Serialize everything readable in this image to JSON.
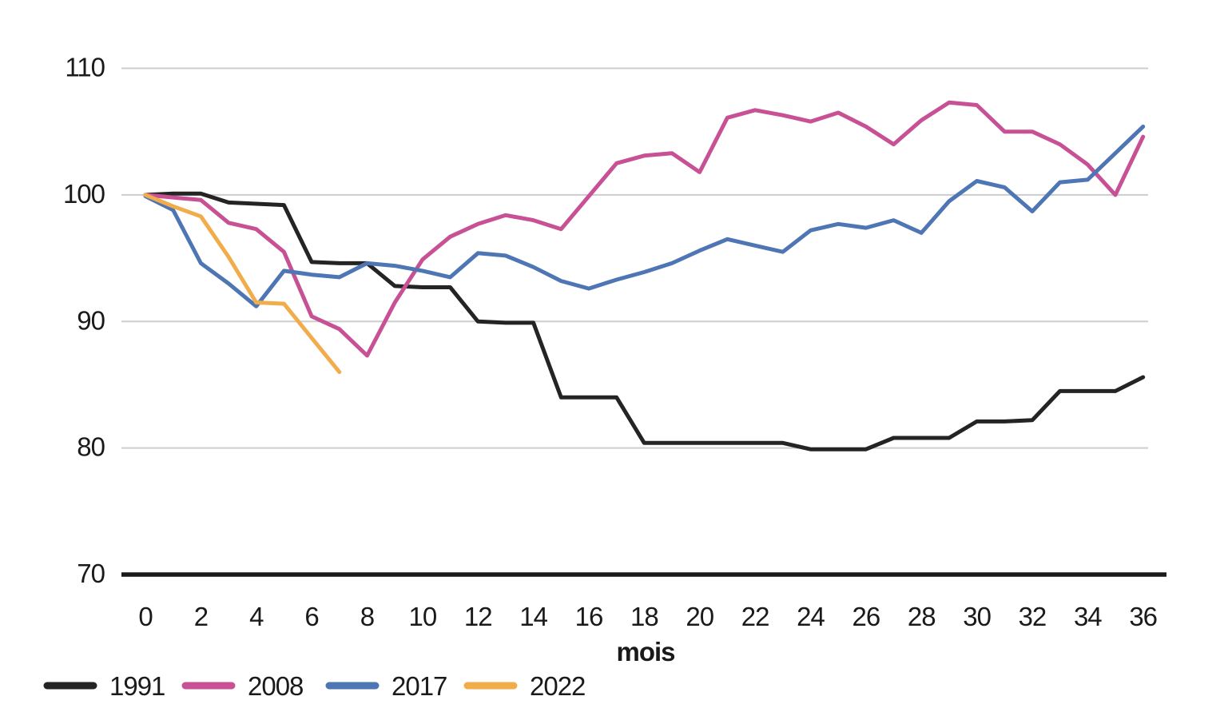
{
  "chart_data": {
    "type": "line",
    "title": "",
    "xlabel": "mois",
    "ylabel": "",
    "x_ticks": [
      0,
      2,
      4,
      6,
      8,
      10,
      12,
      14,
      16,
      18,
      20,
      22,
      24,
      26,
      28,
      30,
      32,
      34,
      36
    ],
    "y_ticks": [
      70,
      80,
      90,
      100,
      110
    ],
    "xlim": [
      0,
      36
    ],
    "ylim": [
      70,
      112
    ],
    "grid": "horizontal-only",
    "legend_position": "bottom-left",
    "colors": {
      "axis": "#1a1a1a",
      "gridline": "#cdcdcd",
      "background": "#ffffff"
    },
    "series": [
      {
        "name": "1991",
        "color": "#242424",
        "x_start": 0,
        "values": [
          100,
          100.1,
          100.1,
          99.4,
          99.3,
          99.2,
          94.7,
          94.6,
          94.6,
          92.8,
          92.7,
          92.7,
          90.0,
          89.9,
          89.9,
          84.0,
          84.0,
          84.0,
          80.4,
          80.4,
          80.4,
          80.4,
          80.4,
          80.4,
          79.9,
          79.9,
          79.9,
          80.8,
          80.8,
          80.8,
          82.1,
          82.1,
          82.2,
          84.5,
          84.5,
          84.5,
          85.6
        ]
      },
      {
        "name": "2008",
        "color": "#c75194",
        "x_start": 0,
        "values": [
          100,
          99.8,
          99.6,
          97.8,
          97.3,
          95.5,
          90.4,
          89.4,
          87.3,
          91.5,
          94.9,
          96.7,
          97.7,
          98.4,
          98.0,
          97.3,
          99.9,
          102.5,
          103.1,
          103.3,
          101.8,
          106.1,
          106.7,
          106.3,
          105.8,
          106.5,
          105.4,
          104.0,
          105.9,
          107.3,
          107.1,
          105.0,
          105.0,
          104.0,
          102.4,
          100.0,
          104.6
        ]
      },
      {
        "name": "2017",
        "color": "#4f76b4",
        "x_start": 0,
        "values": [
          99.9,
          98.8,
          94.6,
          93.0,
          91.2,
          94.0,
          93.7,
          93.5,
          94.6,
          94.4,
          94.0,
          93.5,
          95.4,
          95.2,
          94.3,
          93.2,
          92.6,
          93.3,
          93.9,
          94.6,
          95.6,
          96.5,
          96.0,
          95.5,
          97.2,
          97.7,
          97.4,
          98.0,
          97.0,
          99.5,
          101.1,
          100.6,
          98.7,
          101.0,
          101.2,
          103.3,
          105.4
        ]
      },
      {
        "name": "2022",
        "color": "#f1ad4b",
        "x_start": 0,
        "values": [
          100,
          99.1,
          98.3,
          95.1,
          91.5,
          91.4,
          88.7,
          86.0
        ]
      }
    ]
  }
}
